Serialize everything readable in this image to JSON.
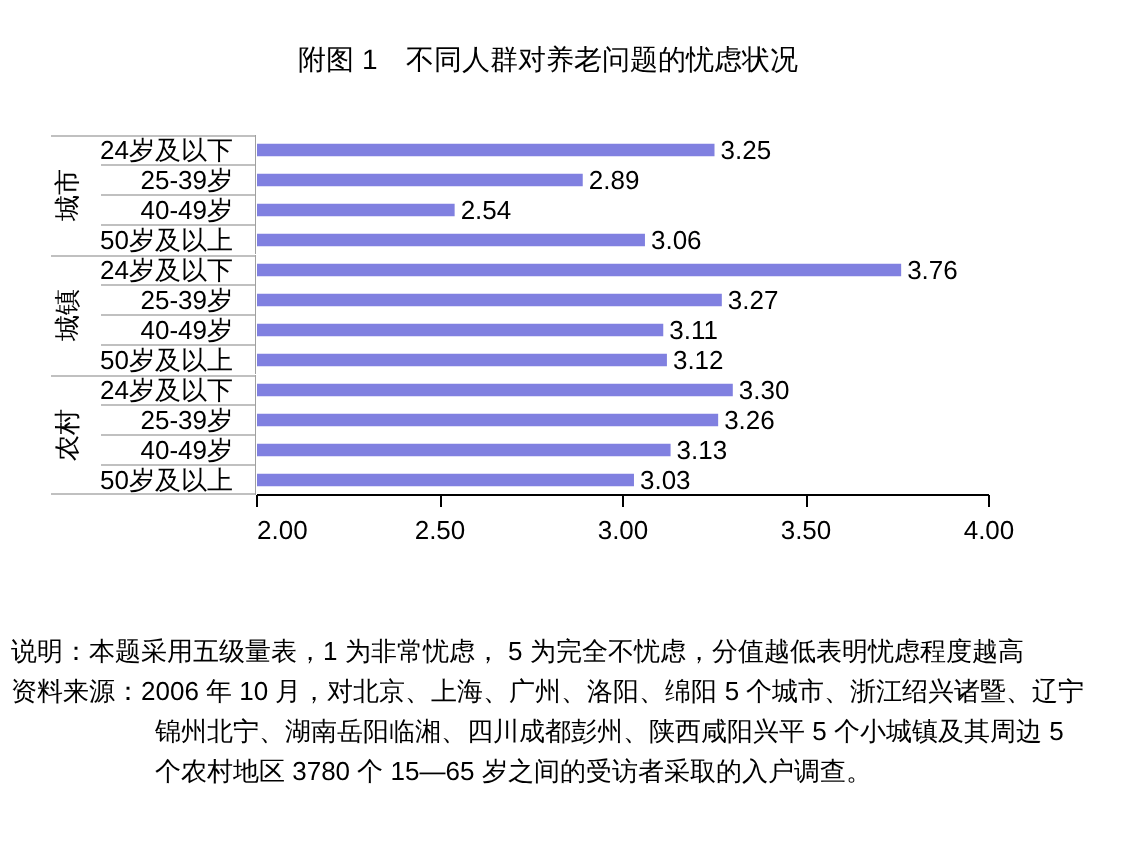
{
  "chart_data": [
    {
      "type": "bar",
      "orientation": "horizontal",
      "title": "附图 1　不同人群对养老问题的忧虑状况",
      "ylabel": "城市",
      "categories": [
        "24岁及以下",
        "25-39岁",
        "40-49岁",
        "50岁及以上"
      ],
      "values": [
        3.25,
        2.89,
        2.54,
        3.06
      ],
      "value_labels": [
        "3.25",
        "2.89",
        "2.54",
        "3.06"
      ],
      "color": "#8080e0",
      "xlim": [
        2,
        4
      ],
      "tick_labels": "y"
    },
    {
      "type": "bar",
      "orientation": "horizontal",
      "ylabel": "城镇",
      "categories": [
        "24岁及以下",
        "25-39岁",
        "40-49岁",
        "50岁及以上"
      ],
      "values": [
        3.76,
        3.27,
        3.11,
        3.12
      ],
      "value_labels": [
        "3.76",
        "3.27",
        "3.11",
        "3.12"
      ],
      "color": "#8080e0",
      "xlim": [
        2,
        4
      ],
      "tick_labels": "y"
    },
    {
      "type": "bar",
      "orientation": "horizontal",
      "ylabel": "农村",
      "categories": [
        "24岁及以下",
        "25-39岁",
        "40-49岁",
        "50岁及以上"
      ],
      "values": [
        3.3,
        3.26,
        3.13,
        3.03
      ],
      "value_labels": [
        "3.30",
        "3.26",
        "3.13",
        "3.03"
      ],
      "color": "#8080e0",
      "xlim": [
        2,
        4
      ],
      "xticks": [
        {
          "value": 2,
          "label": "2.00"
        },
        {
          "value": 2.5,
          "label": "2.50"
        },
        {
          "value": 3,
          "label": "3.00"
        },
        {
          "value": 3.5,
          "label": "3.50"
        },
        {
          "value": 4,
          "label": "4.00"
        }
      ],
      "annotations": [
        "说明：本题采用五级量表，1 为非常忧虑， 5 为完全不忧虑，分值越低表明忧虑程度越高",
        "资料来源：2006 年 10 月，对北京、上海、广州、洛阳、绵阳 5 个城市、浙江绍兴诸暨、辽宁锦州北宁、湖南岳阳临湘、四川成都彭州、陕西咸阳兴平 5 个小城镇及其周边 5 个农村地区 3780 个 15—65 岁之间的受访者采取的入户调查。"
      ]
    }
  ]
}
